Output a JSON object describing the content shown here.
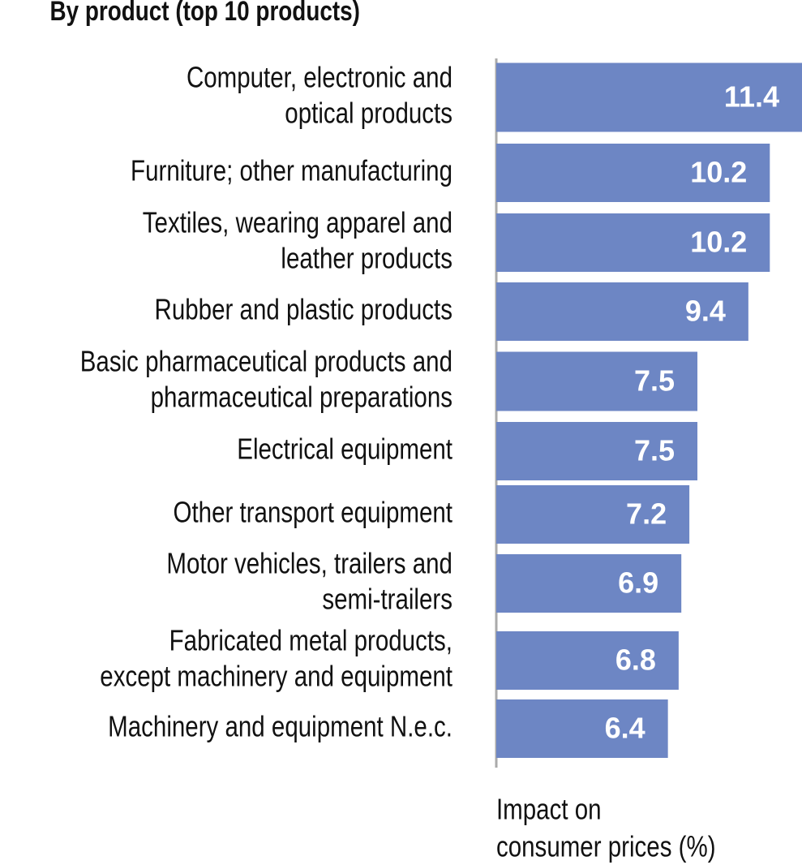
{
  "chart_data": {
    "type": "bar",
    "orientation": "horizontal",
    "title": "By product (top 10 products)",
    "categories": [
      [
        "Computer, electronic and",
        "optical products"
      ],
      [
        "Furniture; other manufacturing"
      ],
      [
        "Textiles, wearing apparel and",
        "leather products"
      ],
      [
        "Rubber and plastic products"
      ],
      [
        "Basic pharmaceutical products and",
        "pharmaceutical preparations"
      ],
      [
        "Electrical equipment"
      ],
      [
        "Other transport equipment"
      ],
      [
        "Motor vehicles, trailers and",
        "semi-trailers"
      ],
      [
        "Fabricated metal products,",
        "except machinery and equipment"
      ],
      [
        "Machinery and equipment N.e.c."
      ]
    ],
    "values": [
      11.4,
      10.2,
      10.2,
      9.4,
      7.5,
      7.5,
      7.2,
      6.9,
      6.8,
      6.4
    ],
    "color": "#6d86c4",
    "xlim": [
      0,
      11.4
    ],
    "x_label": [
      "Impact on",
      "consumer prices (%)"
    ]
  }
}
